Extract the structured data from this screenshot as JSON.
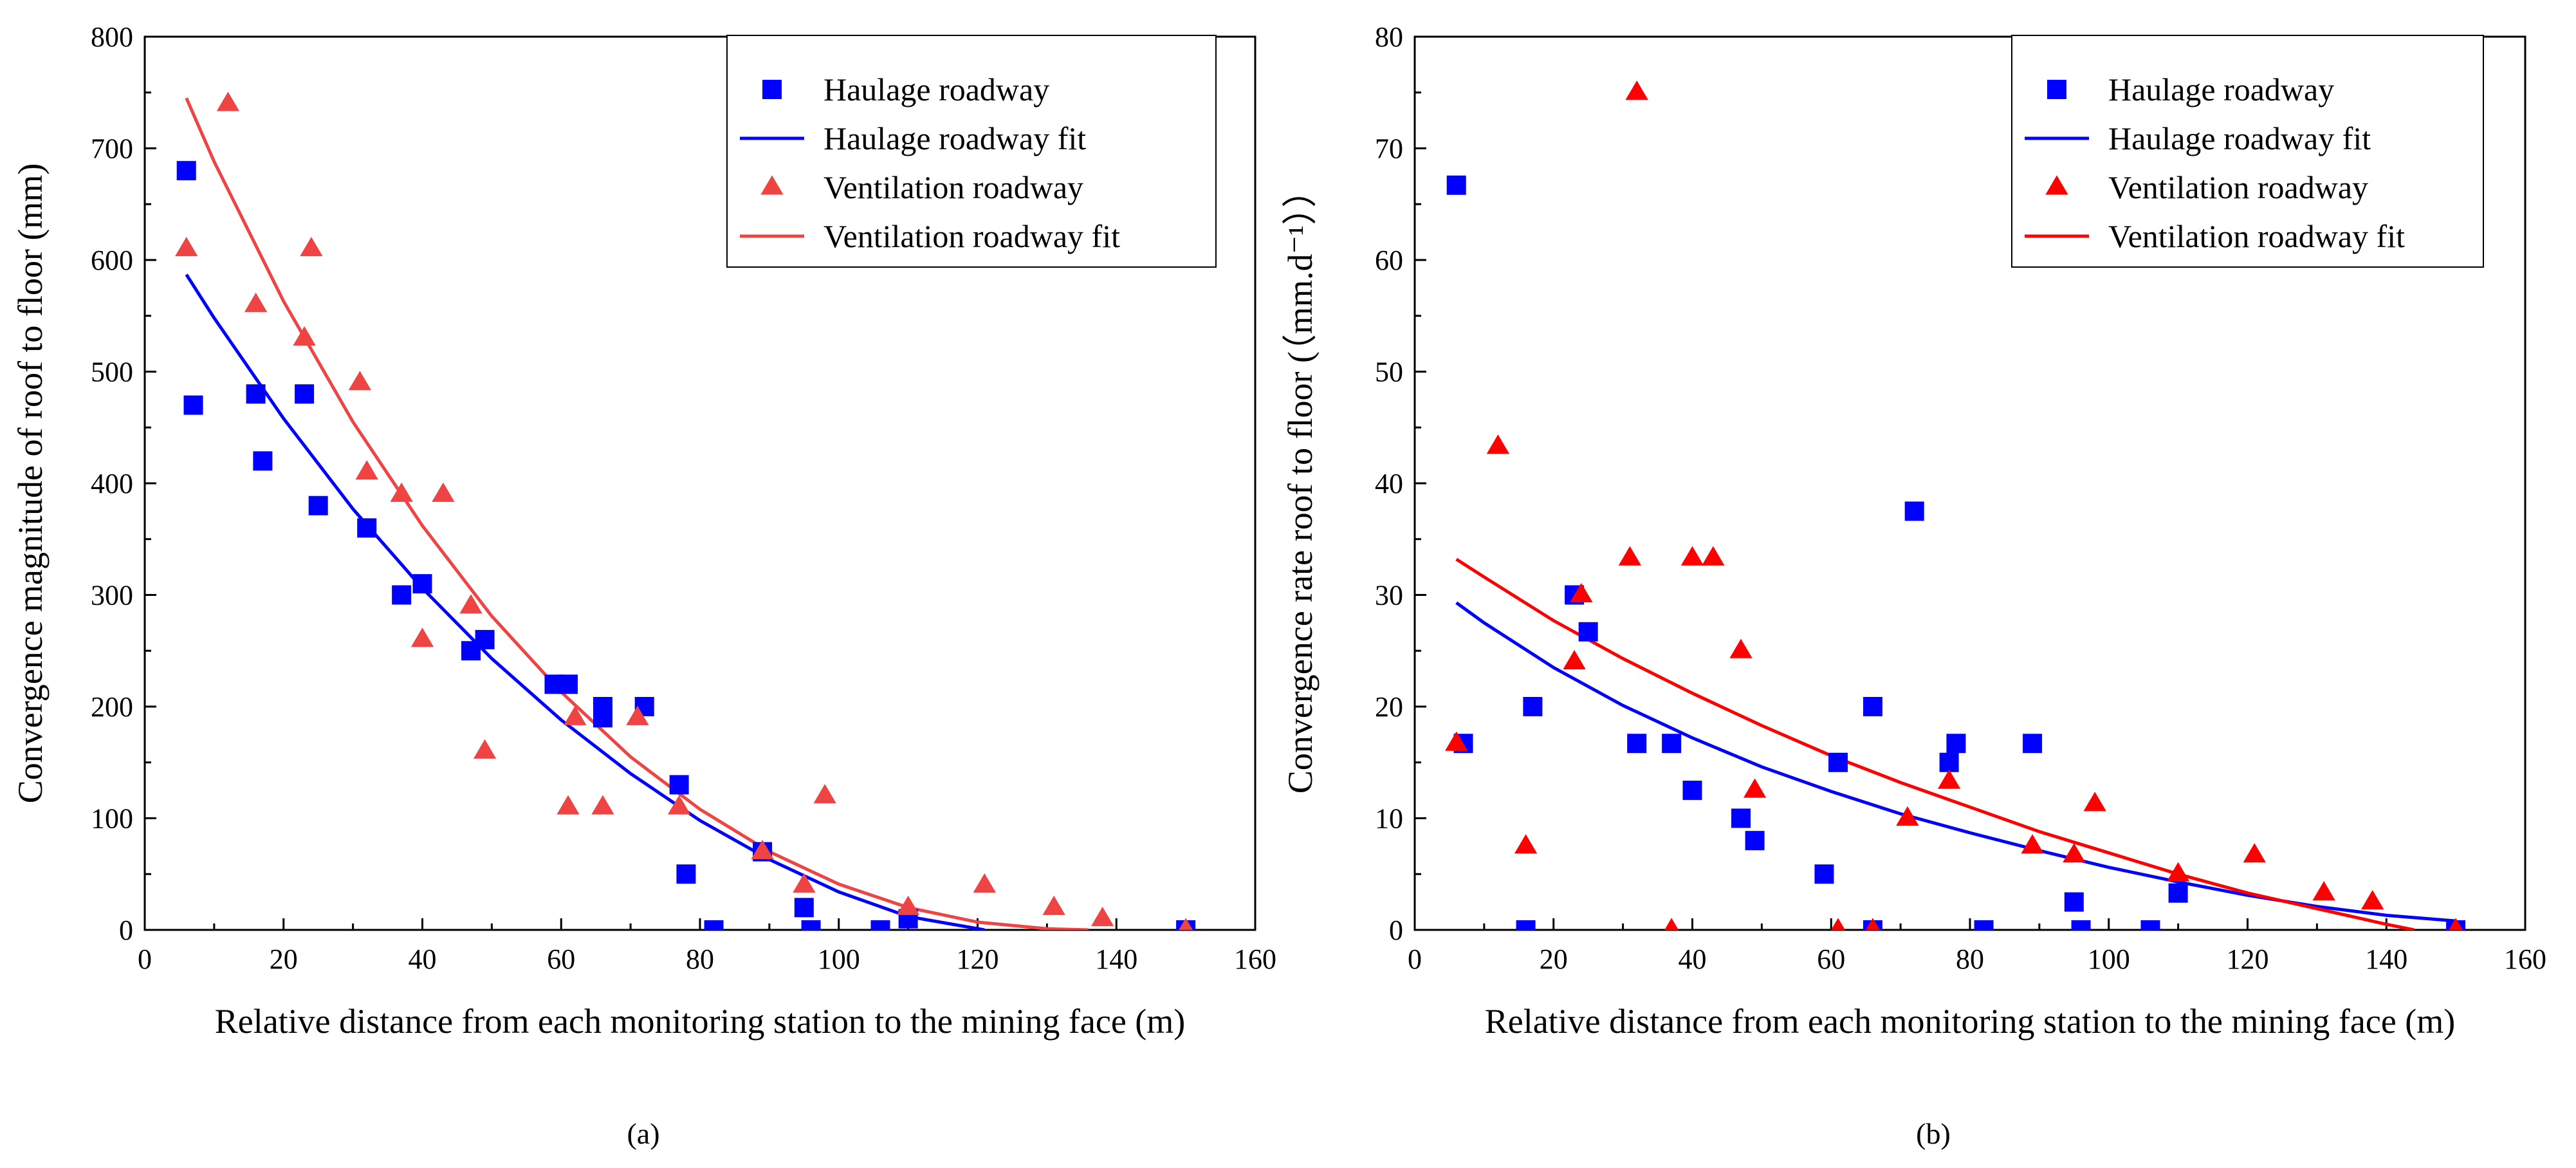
{
  "panel_labels": [
    "(a)",
    "(b)"
  ],
  "chart_data": [
    {
      "type": "scatter",
      "title": "",
      "xlabel": "Relative distance from each monitoring station to the mining face (m)",
      "ylabel": "Convergence magnitude of roof to floor (mm)",
      "xlim": [
        0,
        160
      ],
      "ylim": [
        0,
        800
      ],
      "xticks": [
        0,
        20,
        40,
        60,
        80,
        100,
        120,
        140,
        160
      ],
      "yticks": [
        0,
        100,
        200,
        300,
        400,
        500,
        600,
        700,
        800
      ],
      "grid": false,
      "legend_position": "top-right",
      "series": [
        {
          "name": "Haulage roadway",
          "kind": "scatter",
          "marker": "square",
          "color": "#0000ff",
          "points": [
            [
              6,
              680
            ],
            [
              7,
              470
            ],
            [
              16,
              480
            ],
            [
              17,
              420
            ],
            [
              23,
              480
            ],
            [
              25,
              380
            ],
            [
              32,
              360
            ],
            [
              37,
              300
            ],
            [
              40,
              310
            ],
            [
              47,
              250
            ],
            [
              49,
              260
            ],
            [
              59,
              220
            ],
            [
              61,
              220
            ],
            [
              66,
              190
            ],
            [
              66,
              200
            ],
            [
              72,
              200
            ],
            [
              77,
              130
            ],
            [
              78,
              50
            ],
            [
              82,
              0
            ],
            [
              89,
              70
            ],
            [
              95,
              20
            ],
            [
              96,
              0
            ],
            [
              106,
              0
            ],
            [
              110,
              10
            ],
            [
              150,
              0
            ]
          ]
        },
        {
          "name": "Haulage roadway fit",
          "kind": "line",
          "color": "#0000ff",
          "points": [
            [
              6,
              587
            ],
            [
              10,
              548
            ],
            [
              20,
              458
            ],
            [
              30,
              377
            ],
            [
              40,
              306
            ],
            [
              50,
              243
            ],
            [
              60,
              188
            ],
            [
              70,
              140
            ],
            [
              80,
              98
            ],
            [
              90,
              63
            ],
            [
              100,
              34
            ],
            [
              110,
              12
            ],
            [
              121,
              0
            ]
          ]
        },
        {
          "name": "Ventilation roadway",
          "kind": "scatter",
          "marker": "triangle",
          "color": "#ee4444",
          "points": [
            [
              6,
              610
            ],
            [
              12,
              740
            ],
            [
              16,
              560
            ],
            [
              23,
              530
            ],
            [
              24,
              610
            ],
            [
              31,
              490
            ],
            [
              32,
              410
            ],
            [
              37,
              390
            ],
            [
              40,
              260
            ],
            [
              43,
              390
            ],
            [
              47,
              290
            ],
            [
              49,
              160
            ],
            [
              61,
              110
            ],
            [
              62,
              190
            ],
            [
              66,
              110
            ],
            [
              71,
              190
            ],
            [
              77,
              110
            ],
            [
              89,
              70
            ],
            [
              95,
              40
            ],
            [
              98,
              120
            ],
            [
              110,
              20
            ],
            [
              121,
              40
            ],
            [
              131,
              20
            ],
            [
              138,
              10
            ],
            [
              150,
              0
            ]
          ]
        },
        {
          "name": "Ventilation roadway fit",
          "kind": "line",
          "color": "#ee4444",
          "points": [
            [
              6,
              745
            ],
            [
              10,
              688
            ],
            [
              20,
              563
            ],
            [
              30,
              455
            ],
            [
              40,
              362
            ],
            [
              50,
              281
            ],
            [
              60,
              213
            ],
            [
              70,
              155
            ],
            [
              80,
              108
            ],
            [
              90,
              70
            ],
            [
              100,
              41
            ],
            [
              110,
              20
            ],
            [
              120,
              7
            ],
            [
              130,
              1
            ],
            [
              136,
              0
            ]
          ]
        }
      ]
    },
    {
      "type": "scatter",
      "title": "",
      "xlabel": "Relative distance from each monitoring station to the mining face (m)",
      "ylabel": "Convergence rate roof to floor (（mm.d⁻¹））",
      "xlim": [
        0,
        160
      ],
      "ylim": [
        0,
        80
      ],
      "xticks": [
        0,
        20,
        40,
        60,
        80,
        100,
        120,
        140,
        160
      ],
      "yticks": [
        0,
        10,
        20,
        30,
        40,
        50,
        60,
        70,
        80
      ],
      "grid": false,
      "legend_position": "top-right",
      "series": [
        {
          "name": "Haulage roadway",
          "kind": "scatter",
          "marker": "square",
          "color": "#0000ff",
          "points": [
            [
              6,
              66.7
            ],
            [
              7,
              16.7
            ],
            [
              16,
              0
            ],
            [
              17,
              20
            ],
            [
              23,
              30
            ],
            [
              25,
              26.7
            ],
            [
              32,
              16.7
            ],
            [
              37,
              16.7
            ],
            [
              40,
              12.5
            ],
            [
              47,
              10
            ],
            [
              49,
              8
            ],
            [
              59,
              5
            ],
            [
              61,
              15
            ],
            [
              66,
              20
            ],
            [
              66,
              0
            ],
            [
              72,
              37.5
            ],
            [
              77,
              15
            ],
            [
              78,
              16.7
            ],
            [
              82,
              0
            ],
            [
              89,
              16.7
            ],
            [
              95,
              2.5
            ],
            [
              96,
              0
            ],
            [
              106,
              0
            ],
            [
              110,
              3.3
            ],
            [
              150,
              0
            ]
          ]
        },
        {
          "name": "Haulage roadway fit",
          "kind": "line",
          "color": "#0000ff",
          "points": [
            [
              6,
              29.3
            ],
            [
              10,
              27.5
            ],
            [
              20,
              23.5
            ],
            [
              30,
              20.1
            ],
            [
              40,
              17.2
            ],
            [
              50,
              14.6
            ],
            [
              60,
              12.4
            ],
            [
              70,
              10.4
            ],
            [
              80,
              8.7
            ],
            [
              90,
              7.1
            ],
            [
              100,
              5.6
            ],
            [
              110,
              4.3
            ],
            [
              120,
              3.1
            ],
            [
              130,
              2.1
            ],
            [
              140,
              1.3
            ],
            [
              150,
              0.8
            ]
          ]
        },
        {
          "name": "Ventilation roadway",
          "kind": "scatter",
          "marker": "triangle",
          "color": "#ff0000",
          "points": [
            [
              6,
              16.7
            ],
            [
              12,
              43.3
            ],
            [
              16,
              7.5
            ],
            [
              23,
              24
            ],
            [
              24,
              30
            ],
            [
              31,
              33.3
            ],
            [
              32,
              75
            ],
            [
              37,
              0
            ],
            [
              40,
              33.3
            ],
            [
              43,
              33.3
            ],
            [
              47,
              25
            ],
            [
              49,
              12.5
            ],
            [
              61,
              0
            ],
            [
              66,
              0
            ],
            [
              71,
              10
            ],
            [
              77,
              13.3
            ],
            [
              89,
              7.5
            ],
            [
              95,
              6.7
            ],
            [
              98,
              11.3
            ],
            [
              110,
              5
            ],
            [
              121,
              6.7
            ],
            [
              131,
              3.3
            ],
            [
              138,
              2.5
            ],
            [
              150,
              0
            ]
          ]
        },
        {
          "name": "Ventilation roadway fit",
          "kind": "line",
          "color": "#ff0000",
          "points": [
            [
              6,
              33.2
            ],
            [
              10,
              31.6
            ],
            [
              20,
              27.7
            ],
            [
              30,
              24.3
            ],
            [
              40,
              21.2
            ],
            [
              50,
              18.3
            ],
            [
              60,
              15.6
            ],
            [
              70,
              13.2
            ],
            [
              80,
              11
            ],
            [
              90,
              8.8
            ],
            [
              100,
              6.9
            ],
            [
              110,
              5
            ],
            [
              120,
              3.3
            ],
            [
              130,
              1.9
            ],
            [
              140,
              0.5
            ],
            [
              144,
              0
            ]
          ]
        }
      ]
    }
  ]
}
